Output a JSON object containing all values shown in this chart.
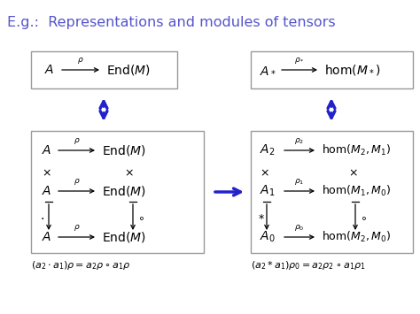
{
  "title": "E.g.:  Representations and modules of tensors",
  "title_color": "#5555cc",
  "title_fontsize": 11.5,
  "background_color": "#ffffff",
  "box_color": "#999999",
  "text_color": "#000000",
  "blue_color": "#2222cc"
}
